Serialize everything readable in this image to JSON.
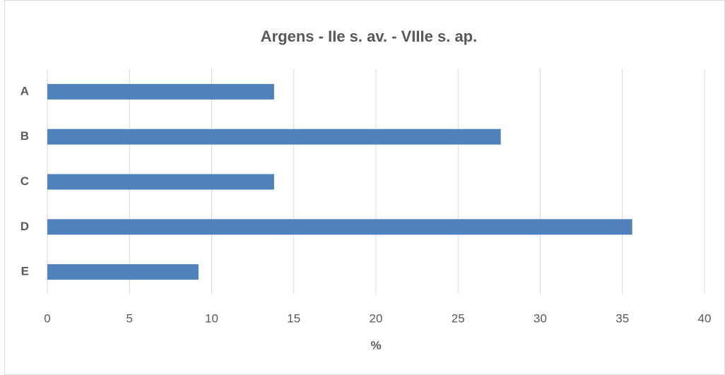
{
  "chart_data": {
    "type": "barh",
    "title": "Argens - IIe s. av. - VIIIe s. ap.",
    "xlabel": "%",
    "categories": [
      "A",
      "B",
      "C",
      "D",
      "E"
    ],
    "values": [
      13.8,
      27.6,
      13.8,
      35.6,
      9.2
    ],
    "color": "#4f81bd",
    "xlim": [
      0,
      40
    ],
    "xticks": [
      0,
      5,
      10,
      15,
      20,
      25,
      30,
      35,
      40
    ],
    "grid": true
  }
}
